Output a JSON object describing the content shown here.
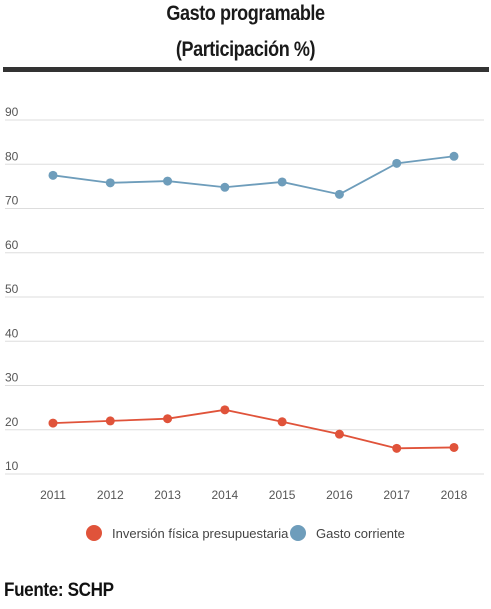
{
  "header": {
    "title": "Gasto programable",
    "subtitle": "(Participación %)"
  },
  "footer": {
    "source": "Fuente: SCHP"
  },
  "colors": {
    "inversion": "#e0533a",
    "corriente": "#6e9dbb",
    "grid": "#dddddd",
    "rule": "#333333"
  },
  "chart_data": {
    "type": "line",
    "title": "Gasto programable",
    "subtitle": "(Participación %)",
    "xlabel": "",
    "ylabel": "",
    "x": [
      "2011",
      "2012",
      "2013",
      "2014",
      "2015",
      "2016",
      "2017",
      "2018"
    ],
    "yticks": [
      10,
      20,
      30,
      40,
      50,
      60,
      70,
      80,
      90
    ],
    "ylim": [
      10,
      90
    ],
    "grid": true,
    "legend": "bottom",
    "series": [
      {
        "name": "Inversión física presupuestaria",
        "color": "#e0533a",
        "values": [
          21.5,
          22.0,
          22.5,
          24.5,
          21.8,
          19.0,
          15.8,
          16.0
        ]
      },
      {
        "name": "Gasto corriente",
        "color": "#6e9dbb",
        "values": [
          77.5,
          75.8,
          76.2,
          74.8,
          76.0,
          73.2,
          80.2,
          81.8
        ]
      }
    ]
  }
}
